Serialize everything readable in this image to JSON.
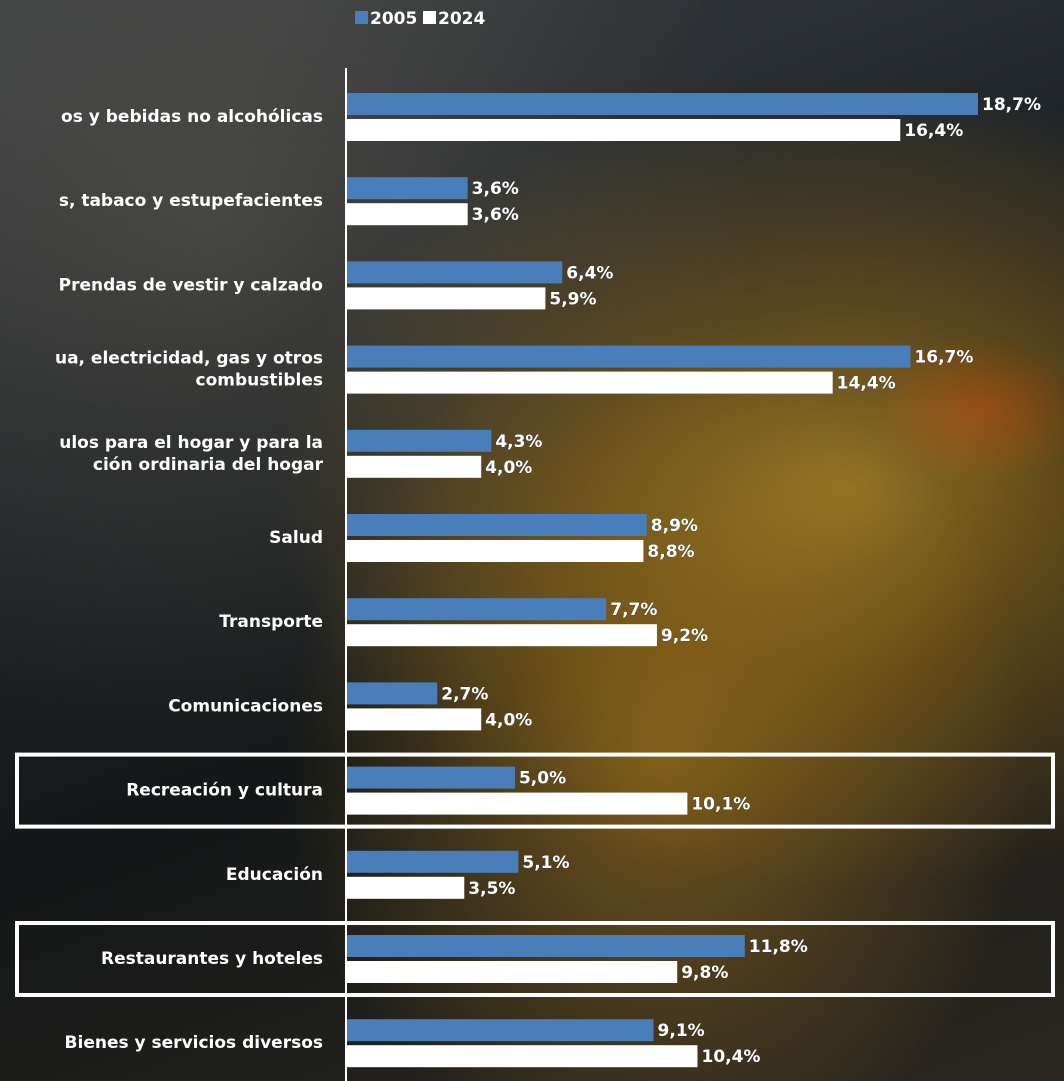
{
  "chart_data": {
    "type": "bar",
    "orientation": "horizontal",
    "categories": [
      "Alimentos y bebidas no alcohólicas",
      "Bebidas alcohólicas, tabaco y estupefacientes",
      "Prendas de vestir y calzado",
      "Vivienda, agua, electricidad, gas y otros combustibles",
      "Muebles, artículos para el hogar y para la conservación ordinaria del hogar",
      "Salud",
      "Transporte",
      "Comunicaciones",
      "Recreación y cultura",
      "Educación",
      "Restaurantes y hoteles",
      "Bienes y servicios diversos"
    ],
    "category_display": [
      [
        "os y bebidas no alcohólicas"
      ],
      [
        "s, tabaco y estupefacientes"
      ],
      [
        "Prendas de vestir y calzado"
      ],
      [
        "ua, electricidad, gas y otros",
        "combustibles"
      ],
      [
        "ulos para el hogar y para la",
        "ción ordinaria del hogar"
      ],
      [
        "Salud"
      ],
      [
        "Transporte"
      ],
      [
        "Comunicaciones"
      ],
      [
        "Recreación y cultura"
      ],
      [
        "Educación"
      ],
      [
        "Restaurantes y hoteles"
      ],
      [
        "Bienes y servicios diversos"
      ]
    ],
    "series": [
      {
        "name": "2005",
        "color": "#4a7ebb",
        "values": [
          18.7,
          3.6,
          6.4,
          16.7,
          4.3,
          8.9,
          7.7,
          2.7,
          5.0,
          5.1,
          11.8,
          9.1
        ],
        "labels": [
          "18,7%",
          "3,6%",
          "6,4%",
          "16,7%",
          "4,3%",
          "8,9%",
          "7,7%",
          "2,7%",
          "5,0%",
          "5,1%",
          "11,8%",
          "9,1%"
        ]
      },
      {
        "name": "2024",
        "color": "#ffffff",
        "values": [
          16.4,
          3.6,
          5.9,
          14.4,
          4.0,
          8.8,
          9.2,
          4.0,
          10.1,
          3.5,
          9.8,
          10.4
        ],
        "labels": [
          "16,4%",
          "3,6%",
          "5,9%",
          "14,4%",
          "4,0%",
          "8,8%",
          "9,2%",
          "4,0%",
          "10,1%",
          "3,5%",
          "9,8%",
          "10,4%"
        ]
      }
    ],
    "highlighted_categories": [
      "Recreación y cultura",
      "Restaurantes y hoteles"
    ],
    "legend_position": "top",
    "grid": false,
    "xlim": [
      0,
      18.7
    ]
  },
  "colors": {
    "text": "#ffffff",
    "label_stroke": "#3a3a3a",
    "axis": "#ffffff",
    "highlight_box": "#ffffff"
  }
}
